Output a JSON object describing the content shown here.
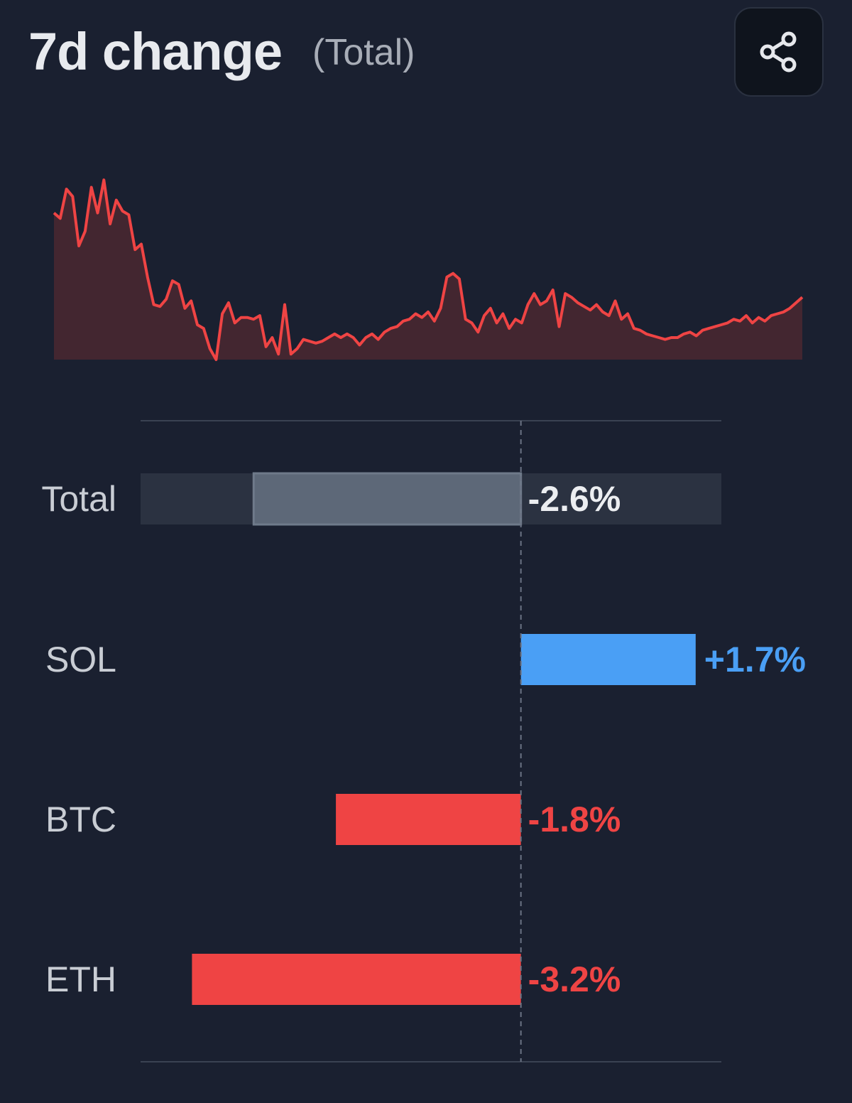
{
  "header": {
    "title": "7d change",
    "subtitle": "(Total)",
    "share_icon": "share-icon"
  },
  "colors": {
    "background": "#1a2030",
    "positive": "#4a9ff5",
    "negative": "#ef4444",
    "total_bar": "#5d6878",
    "total_track": "#2b3241",
    "sparkline": "#ef4444",
    "sparkline_fill": "#432630",
    "axis": "#3a4252",
    "total_text": "#eceef1"
  },
  "chart_data": [
    {
      "type": "area",
      "title": "7d change (Total)",
      "x": [
        0,
        1,
        2,
        3,
        4,
        5,
        6,
        7,
        8,
        9,
        10,
        11,
        12,
        13,
        14,
        15,
        16,
        17,
        18,
        19,
        20,
        21,
        22,
        23,
        24,
        25,
        26,
        27,
        28,
        29,
        30,
        31,
        32,
        33,
        34,
        35,
        36,
        37,
        38,
        39,
        40,
        41,
        42,
        43,
        44,
        45,
        46,
        47,
        48,
        49,
        50,
        51,
        52,
        53,
        54,
        55,
        56,
        57,
        58,
        59,
        60,
        61,
        62,
        63,
        64,
        65,
        66,
        67,
        68,
        69,
        70,
        71,
        72,
        73,
        74,
        75,
        76,
        77,
        78,
        79,
        80,
        81,
        82,
        83,
        84,
        85,
        86,
        87,
        88,
        89,
        90,
        91,
        92,
        93,
        94,
        95,
        96,
        97,
        98,
        99,
        100,
        101,
        102,
        103,
        104,
        105,
        106,
        107,
        108,
        109,
        110,
        111,
        112,
        113,
        114,
        115,
        116,
        117,
        118,
        119,
        120
      ],
      "values": [
        0.8,
        0.77,
        0.93,
        0.89,
        0.62,
        0.7,
        0.94,
        0.8,
        0.98,
        0.74,
        0.87,
        0.81,
        0.79,
        0.6,
        0.63,
        0.45,
        0.3,
        0.29,
        0.33,
        0.43,
        0.41,
        0.28,
        0.32,
        0.19,
        0.17,
        0.06,
        0.0,
        0.25,
        0.31,
        0.2,
        0.23,
        0.23,
        0.22,
        0.24,
        0.07,
        0.12,
        0.03,
        0.3,
        0.03,
        0.06,
        0.11,
        0.1,
        0.09,
        0.1,
        0.12,
        0.14,
        0.12,
        0.14,
        0.12,
        0.08,
        0.12,
        0.14,
        0.11,
        0.15,
        0.17,
        0.18,
        0.21,
        0.22,
        0.25,
        0.23,
        0.26,
        0.21,
        0.28,
        0.45,
        0.47,
        0.44,
        0.22,
        0.2,
        0.15,
        0.24,
        0.28,
        0.2,
        0.25,
        0.17,
        0.22,
        0.2,
        0.3,
        0.36,
        0.3,
        0.32,
        0.38,
        0.18,
        0.36,
        0.34,
        0.31,
        0.29,
        0.27,
        0.3,
        0.26,
        0.24,
        0.32,
        0.22,
        0.25,
        0.17,
        0.16,
        0.14,
        0.13,
        0.12,
        0.11,
        0.12,
        0.12,
        0.14,
        0.15,
        0.13,
        0.16,
        0.17,
        0.18,
        0.19,
        0.2,
        0.22,
        0.21,
        0.24,
        0.2,
        0.23,
        0.21,
        0.24,
        0.25,
        0.26,
        0.28,
        0.31,
        0.34
      ],
      "xlabel": "",
      "ylabel": "",
      "grid": false
    },
    {
      "type": "bar",
      "orientation": "horizontal",
      "categories": [
        "Total",
        "SOL",
        "BTC",
        "ETH"
      ],
      "values": [
        -2.6,
        1.7,
        -1.8,
        -3.2
      ],
      "value_labels": [
        "-2.6%",
        "+1.7%",
        "-1.8%",
        "-3.2%"
      ],
      "xlim": [
        -3.7,
        1.95
      ],
      "zero_line": "dashed",
      "grid": false,
      "legend": "none"
    }
  ]
}
